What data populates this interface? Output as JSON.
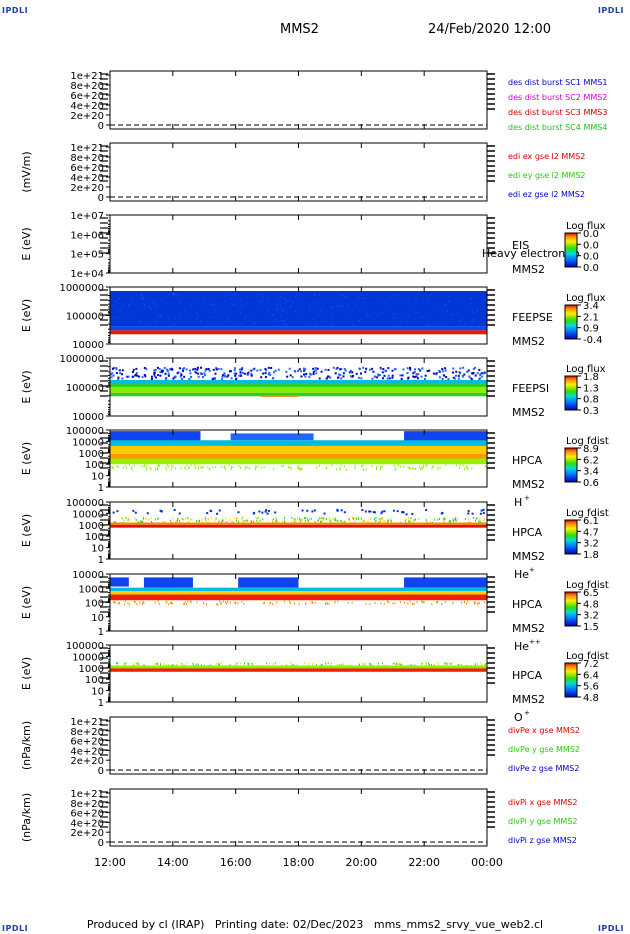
{
  "corners": {
    "tl": "IPDLI",
    "tr": "IPDLI",
    "bl": "IPDLI",
    "br": "IPDLI"
  },
  "header": {
    "title": "MMS2",
    "date": "24/Feb/2020 12:00"
  },
  "footer": {
    "text": "Produced by cl (IRAP)   Printing date: 02/Dec/2023   mms_mms2_srvy_vue_web2.cl"
  },
  "colors": {
    "dist1": "#0000cc",
    "dist2": "#cc00cc",
    "dist3": "#cc0000",
    "dist4": "#22bb22",
    "red": "#dd0000",
    "green": "#22cc00",
    "blue": "#0000cc"
  },
  "chart_data": {
    "type": "heatmap",
    "time_axis": {
      "ticks": [
        "12:00",
        "14:00",
        "16:00",
        "18:00",
        "20:00",
        "22:00",
        "00:00"
      ]
    },
    "panels": [
      {
        "kind": "line",
        "ylabel": "",
        "ticks": [
          "1e+21",
          "8e+20",
          "6e+20",
          "4e+20",
          "2e+20",
          "0"
        ],
        "legend": [
          {
            "text": "des dist burst SC1 MMS1",
            "color": "dist1"
          },
          {
            "text": "des dist burst SC2 MMS2",
            "color": "dist2"
          },
          {
            "text": "des dist burst SC3 MMS3",
            "color": "dist3"
          },
          {
            "text": "des dist burst SC4 MMS4",
            "color": "dist4"
          }
        ]
      },
      {
        "kind": "line",
        "ylabel": "(mV/m)",
        "ticks": [
          "1e+21",
          "8e+20",
          "6e+20",
          "4e+20",
          "2e+20",
          "0"
        ],
        "legend": [
          {
            "text": "edi ex gse l2 MMS2",
            "color": "red"
          },
          {
            "text": "edi ey gse l2 MMS2",
            "color": "green"
          },
          {
            "text": "edi ez gse l2 MMS2",
            "color": "blue"
          }
        ]
      },
      {
        "kind": "spec",
        "ylabel": "E (eV)",
        "ticks": [
          "1e+07",
          "1e+06",
          "1e+05",
          "1e+04"
        ],
        "labels": [
          "EIS",
          "MMS2"
        ],
        "cbar_title": "Log flux",
        "cbar_ticks": [
          "0.0",
          "0.0",
          "0.0",
          "0.0"
        ],
        "overlay": "Heavy electron to",
        "fill": "none"
      },
      {
        "kind": "spec",
        "ylabel": "E (eV)",
        "ticks": [
          "1000000",
          "100000",
          "10000"
        ],
        "labels": [
          "FEEPSE",
          "MMS2"
        ],
        "cbar_title": "Log flux",
        "cbar_ticks": [
          "3.4",
          "2.1",
          "0.9",
          "-0.4"
        ],
        "fill": "feepse"
      },
      {
        "kind": "spec",
        "ylabel": "E (eV)",
        "ticks": [
          "1000000",
          "100000",
          "10000"
        ],
        "labels": [
          "FEEPSI",
          "MMS2"
        ],
        "cbar_title": "Log flux",
        "cbar_ticks": [
          "1.8",
          "1.3",
          "0.8",
          "0.3"
        ],
        "fill": "feepsi"
      },
      {
        "kind": "spec",
        "ylabel": "E (eV)",
        "ticks": [
          "100000",
          "10000",
          "1000",
          "100",
          "10",
          "1"
        ],
        "labels": [
          "HPCA",
          "MMS2",
          "H",
          "+"
        ],
        "cbar_title": "Log fdist",
        "cbar_ticks": [
          "8.9",
          "6.2",
          "3.4",
          "0.6"
        ],
        "fill": "hplus"
      },
      {
        "kind": "spec",
        "ylabel": "E (eV)",
        "ticks": [
          "100000",
          "10000",
          "1000",
          "100",
          "10",
          "1"
        ],
        "labels": [
          "HPCA",
          "MMS2",
          "He",
          "+"
        ],
        "cbar_title": "Log fdist",
        "cbar_ticks": [
          "6.1",
          "4.7",
          "3.2",
          "1.8"
        ],
        "fill": "heplus"
      },
      {
        "kind": "spec",
        "ylabel": "E (eV)",
        "ticks": [
          "10000",
          "1000",
          "100",
          "10",
          "1"
        ],
        "labels": [
          "HPCA",
          "MMS2",
          "He",
          "++"
        ],
        "cbar_title": "Log fdist",
        "cbar_ticks": [
          "6.5",
          "4.8",
          "3.2",
          "1.5"
        ],
        "fill": "hepp"
      },
      {
        "kind": "spec",
        "ylabel": "E (eV)",
        "ticks": [
          "100000",
          "10000",
          "1000",
          "100",
          "10",
          "1"
        ],
        "labels": [
          "HPCA",
          "MMS2",
          "O",
          "+"
        ],
        "cbar_title": "Log fdist",
        "cbar_ticks": [
          "7.2",
          "6.4",
          "5.6",
          "4.8"
        ],
        "fill": "oplus"
      },
      {
        "kind": "line",
        "ylabel": "(nPa/km)",
        "ticks": [
          "1e+21",
          "8e+20",
          "6e+20",
          "4e+20",
          "2e+20",
          "0"
        ],
        "legend": [
          {
            "text": "divPe x gse MMS2",
            "color": "red"
          },
          {
            "text": "divPe y gse MMS2",
            "color": "green"
          },
          {
            "text": "divPe z gse MMS2",
            "color": "blue"
          }
        ]
      },
      {
        "kind": "line",
        "ylabel": "(nPa/km)",
        "ticks": [
          "1e+21",
          "8e+20",
          "6e+20",
          "4e+20",
          "2e+20",
          "0"
        ],
        "legend": [
          {
            "text": "divPi x gse MMS2",
            "color": "red"
          },
          {
            "text": "divPi y gse MMS2",
            "color": "green"
          },
          {
            "text": "divPi z gse MMS2",
            "color": "blue"
          }
        ]
      }
    ]
  }
}
